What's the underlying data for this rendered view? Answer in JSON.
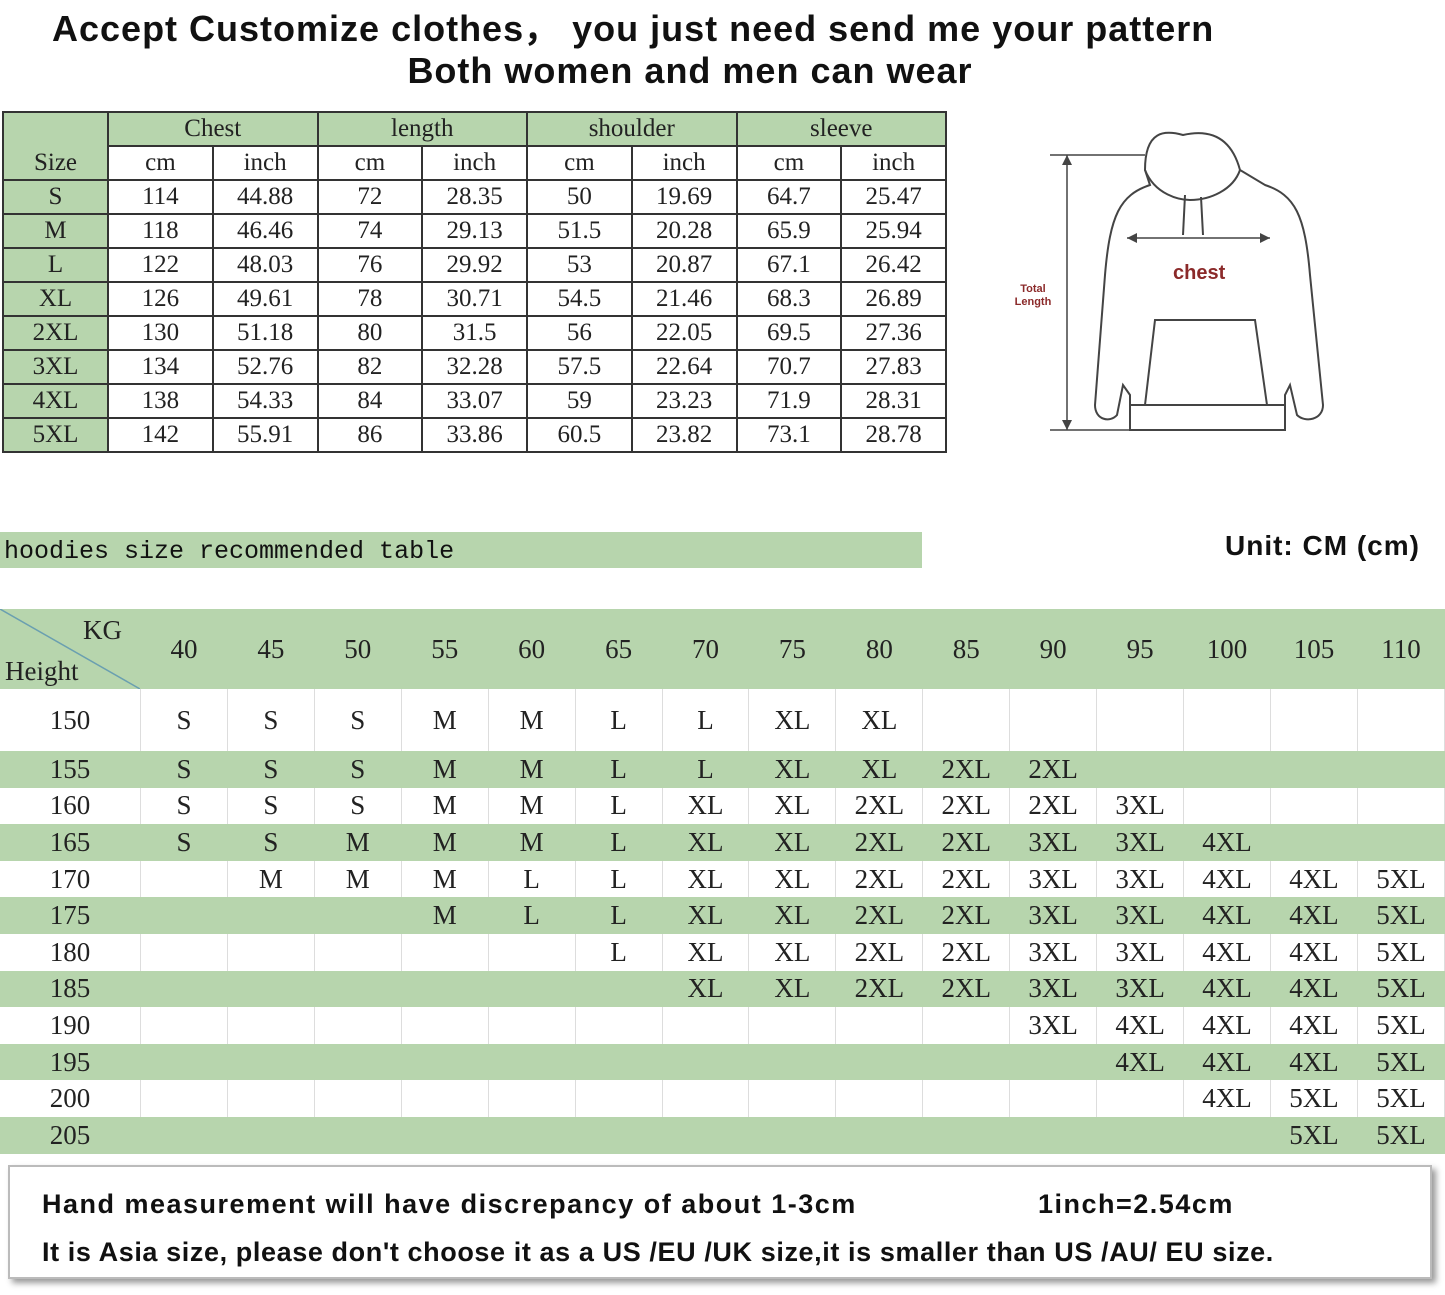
{
  "header": {
    "line1": "Accept Customize clothes， you just need send me your pattern",
    "line2": "Both women and men can wear"
  },
  "size_table": {
    "size_label": "Size",
    "groups": [
      "Chest",
      "length",
      "shoulder",
      "sleeve"
    ],
    "units": [
      "cm",
      "inch",
      "cm",
      "inch",
      "cm",
      "inch",
      "cm",
      "inch"
    ],
    "rows": [
      [
        "S",
        "114",
        "44.88",
        "72",
        "28.35",
        "50",
        "19.69",
        "64.7",
        "25.47"
      ],
      [
        "M",
        "118",
        "46.46",
        "74",
        "29.13",
        "51.5",
        "20.28",
        "65.9",
        "25.94"
      ],
      [
        "L",
        "122",
        "48.03",
        "76",
        "29.92",
        "53",
        "20.87",
        "67.1",
        "26.42"
      ],
      [
        "XL",
        "126",
        "49.61",
        "78",
        "30.71",
        "54.5",
        "21.46",
        "68.3",
        "26.89"
      ],
      [
        "2XL",
        "130",
        "51.18",
        "80",
        "31.5",
        "56",
        "22.05",
        "69.5",
        "27.36"
      ],
      [
        "3XL",
        "134",
        "52.76",
        "82",
        "32.28",
        "57.5",
        "22.64",
        "70.7",
        "27.83"
      ],
      [
        "4XL",
        "138",
        "54.33",
        "84",
        "33.07",
        "59",
        "23.23",
        "71.9",
        "28.31"
      ],
      [
        "5XL",
        "142",
        "55.91",
        "86",
        "33.86",
        "60.5",
        "23.82",
        "73.1",
        "28.78"
      ]
    ]
  },
  "diagram": {
    "chest": "chest",
    "total_length": "Total Length"
  },
  "recommend": {
    "title": "hoodies size recommended table",
    "unit": "Unit: CM (cm)",
    "corner_top": "KG",
    "corner_bottom": "Height",
    "weights": [
      "40",
      "45",
      "50",
      "55",
      "60",
      "65",
      "70",
      "75",
      "80",
      "85",
      "90",
      "95",
      "100",
      "105",
      "110"
    ],
    "rows": [
      {
        "height": "150",
        "sizes": [
          "S",
          "S",
          "S",
          "M",
          "M",
          "L",
          "L",
          "XL",
          "XL",
          null,
          null,
          null,
          null,
          null,
          null
        ]
      },
      {
        "height": "155",
        "sizes": [
          "S",
          "S",
          "S",
          "M",
          "M",
          "L",
          "L",
          "XL",
          "XL",
          "2XL",
          "2XL",
          null,
          null,
          null,
          null
        ]
      },
      {
        "height": "160",
        "sizes": [
          "S",
          "S",
          "S",
          "M",
          "M",
          "L",
          "XL",
          "XL",
          "2XL",
          "2XL",
          "2XL",
          "3XL",
          null,
          null,
          null
        ]
      },
      {
        "height": "165",
        "sizes": [
          "S",
          "S",
          "M",
          "M",
          "M",
          "L",
          "XL",
          "XL",
          "2XL",
          "2XL",
          "3XL",
          "3XL",
          "4XL",
          null,
          null
        ]
      },
      {
        "height": "170",
        "sizes": [
          null,
          "M",
          "M",
          "M",
          "L",
          "L",
          "XL",
          "XL",
          "2XL",
          "2XL",
          "3XL",
          "3XL",
          "4XL",
          "4XL",
          "5XL"
        ]
      },
      {
        "height": "175",
        "sizes": [
          null,
          null,
          null,
          "M",
          "L",
          "L",
          "XL",
          "XL",
          "2XL",
          "2XL",
          "3XL",
          "3XL",
          "4XL",
          "4XL",
          "5XL"
        ]
      },
      {
        "height": "180",
        "sizes": [
          null,
          null,
          null,
          null,
          null,
          "L",
          "XL",
          "XL",
          "2XL",
          "2XL",
          "3XL",
          "3XL",
          "4XL",
          "4XL",
          "5XL"
        ]
      },
      {
        "height": "185",
        "sizes": [
          null,
          null,
          null,
          null,
          null,
          null,
          "XL",
          "XL",
          "2XL",
          "2XL",
          "3XL",
          "3XL",
          "4XL",
          "4XL",
          "5XL"
        ]
      },
      {
        "height": "190",
        "sizes": [
          null,
          null,
          null,
          null,
          null,
          null,
          null,
          null,
          null,
          null,
          "3XL",
          "4XL",
          "4XL",
          "4XL",
          "5XL"
        ]
      },
      {
        "height": "195",
        "sizes": [
          null,
          null,
          null,
          null,
          null,
          null,
          null,
          null,
          null,
          null,
          null,
          "4XL",
          "4XL",
          "4XL",
          "5XL"
        ]
      },
      {
        "height": "200",
        "sizes": [
          null,
          null,
          null,
          null,
          null,
          null,
          null,
          null,
          null,
          null,
          null,
          null,
          "4XL",
          "5XL",
          "5XL"
        ]
      },
      {
        "height": "205",
        "sizes": [
          null,
          null,
          null,
          null,
          null,
          null,
          null,
          null,
          null,
          null,
          null,
          null,
          null,
          "5XL",
          "5XL"
        ]
      }
    ]
  },
  "footer": {
    "note": "Hand measurement will have discrepancy of about 1-3cm",
    "conversion": "1inch=2.54cm",
    "warning": "It is Asia size, please don't choose it as a US /EU /UK size,it is smaller than US /AU/ EU size."
  }
}
